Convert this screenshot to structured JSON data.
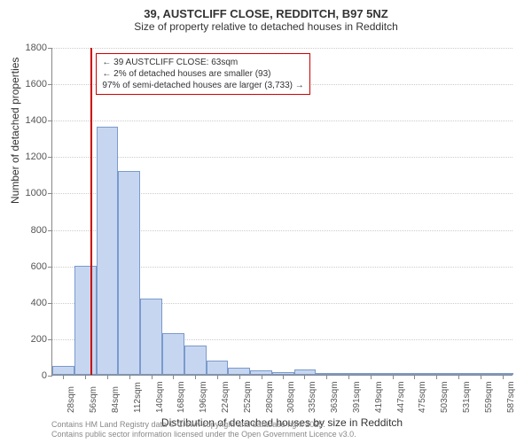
{
  "title_line1": "39, AUSTCLIFF CLOSE, REDDITCH, B97 5NZ",
  "title_line2": "Size of property relative to detached houses in Redditch",
  "title_fontsize": 13,
  "subtitle_fontsize": 12,
  "y_axis_title": "Number of detached properties",
  "x_axis_title": "Distribution of detached houses by size in Redditch",
  "axis_title_fontsize": 12,
  "footer_line1": "Contains HM Land Registry data © Crown copyright and database right 2025.",
  "footer_line2": "Contains public sector information licensed under the Open Government Licence v3.0.",
  "chart": {
    "type": "histogram",
    "ylim": [
      0,
      1800
    ],
    "ytick_step": 200,
    "xlim": [
      14,
      601
    ],
    "x_ticks": [
      28,
      56,
      84,
      112,
      140,
      168,
      196,
      224,
      252,
      280,
      308,
      335,
      363,
      391,
      419,
      447,
      475,
      503,
      531,
      559,
      587
    ],
    "x_tick_suffix": "sqm",
    "bar_color": "#c7d6f0",
    "bar_border": "#7a9acc",
    "grid_color": "#cccccc",
    "background_color": "#ffffff",
    "tick_fontsize": 11,
    "bins": [
      {
        "start": 14,
        "end": 42,
        "count": 50
      },
      {
        "start": 42,
        "end": 70,
        "count": 600
      },
      {
        "start": 70,
        "end": 98,
        "count": 1360
      },
      {
        "start": 98,
        "end": 126,
        "count": 1120
      },
      {
        "start": 126,
        "end": 154,
        "count": 420
      },
      {
        "start": 154,
        "end": 182,
        "count": 230
      },
      {
        "start": 182,
        "end": 210,
        "count": 160
      },
      {
        "start": 210,
        "end": 238,
        "count": 80
      },
      {
        "start": 238,
        "end": 266,
        "count": 40
      },
      {
        "start": 266,
        "end": 294,
        "count": 25
      },
      {
        "start": 294,
        "end": 322,
        "count": 15
      },
      {
        "start": 322,
        "end": 349,
        "count": 30
      },
      {
        "start": 349,
        "end": 377,
        "count": 8
      },
      {
        "start": 377,
        "end": 405,
        "count": 5
      },
      {
        "start": 405,
        "end": 433,
        "count": 5
      },
      {
        "start": 433,
        "end": 461,
        "count": 5
      },
      {
        "start": 461,
        "end": 489,
        "count": 3
      },
      {
        "start": 489,
        "end": 517,
        "count": 3
      },
      {
        "start": 517,
        "end": 545,
        "count": 2
      },
      {
        "start": 545,
        "end": 573,
        "count": 2
      },
      {
        "start": 573,
        "end": 601,
        "count": 2
      }
    ],
    "marker": {
      "value": 63,
      "color": "#cc0000"
    },
    "annotation": {
      "line1": "← 39 AUSTCLIFF CLOSE: 63sqm",
      "line2": "← 2% of detached houses are smaller (93)",
      "line3": "97% of semi-detached houses are larger (3,733) →",
      "border_color": "#cc0000",
      "fontsize": 10
    }
  }
}
